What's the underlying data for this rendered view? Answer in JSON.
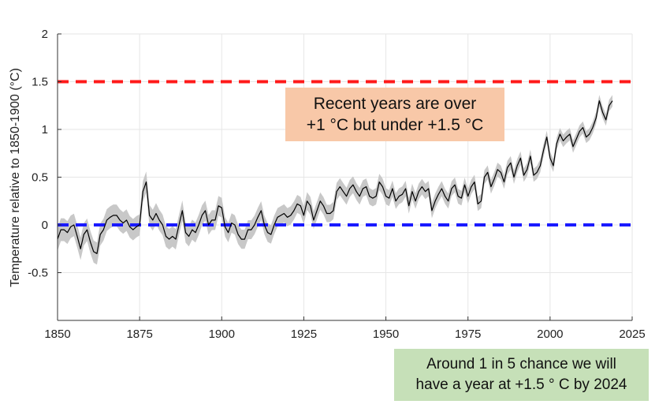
{
  "chart_data": {
    "type": "line",
    "title": "",
    "xlabel": "",
    "ylabel": "Temperature relative to 1850-1900 (°C)",
    "xlim": [
      1850,
      2025
    ],
    "ylim": [
      -1.0,
      2.0
    ],
    "xticks": [
      "1850",
      "1875",
      "1900",
      "1925",
      "1950",
      "1975",
      "2000",
      "2025"
    ],
    "yticks": [
      "-0.5",
      "0",
      "0.5",
      "1",
      "1.5",
      "2"
    ],
    "grid": true,
    "reference_lines": [
      {
        "y": 1.5,
        "color": "#ff1a1a",
        "style": "dashed"
      },
      {
        "y": 0.0,
        "color": "#1a1aff",
        "style": "dashed"
      }
    ],
    "uncertainty_band": {
      "color": "#c8c8c8",
      "half_width_start": 0.12,
      "half_width_end": 0.06
    },
    "series": [
      {
        "color": "#000000",
        "x_start": 1850,
        "values": [
          -0.15,
          -0.05,
          -0.05,
          -0.08,
          -0.02,
          0.0,
          -0.12,
          -0.25,
          -0.1,
          -0.05,
          -0.18,
          -0.28,
          -0.3,
          -0.1,
          -0.05,
          0.05,
          0.08,
          0.1,
          0.1,
          0.05,
          0.02,
          0.05,
          -0.02,
          -0.05,
          -0.02,
          0.0,
          0.35,
          0.45,
          0.1,
          0.05,
          0.12,
          0.05,
          0.0,
          -0.12,
          -0.15,
          -0.12,
          -0.15,
          0.0,
          0.15,
          -0.08,
          -0.12,
          -0.05,
          -0.08,
          0.0,
          0.1,
          0.15,
          0.0,
          0.05,
          0.05,
          0.2,
          0.18,
          -0.02,
          -0.08,
          0.02,
          0.0,
          -0.1,
          -0.15,
          -0.15,
          -0.05,
          -0.05,
          0.0,
          0.08,
          0.15,
          0.0,
          -0.08,
          -0.1,
          0.0,
          0.08,
          0.1,
          0.12,
          0.08,
          0.1,
          0.15,
          0.22,
          0.2,
          0.1,
          0.25,
          0.2,
          0.05,
          0.15,
          0.25,
          0.2,
          0.12,
          0.12,
          0.15,
          0.35,
          0.4,
          0.35,
          0.3,
          0.38,
          0.42,
          0.35,
          0.3,
          0.38,
          0.4,
          0.3,
          0.28,
          0.3,
          0.45,
          0.4,
          0.3,
          0.28,
          0.38,
          0.25,
          0.3,
          0.32,
          0.38,
          0.2,
          0.35,
          0.25,
          0.35,
          0.4,
          0.35,
          0.38,
          0.15,
          0.25,
          0.32,
          0.38,
          0.3,
          0.25,
          0.38,
          0.42,
          0.3,
          0.28,
          0.42,
          0.3,
          0.4,
          0.45,
          0.22,
          0.25,
          0.5,
          0.55,
          0.4,
          0.48,
          0.58,
          0.55,
          0.45,
          0.6,
          0.65,
          0.5,
          0.62,
          0.7,
          0.52,
          0.58,
          0.72,
          0.52,
          0.55,
          0.62,
          0.78,
          0.92,
          0.7,
          0.62,
          0.85,
          0.95,
          0.88,
          0.92,
          0.95,
          0.82,
          0.9,
          0.98,
          1.02,
          0.92,
          0.95,
          1.02,
          1.12,
          1.3,
          1.18,
          1.1,
          1.25,
          1.3
        ]
      }
    ],
    "annotations": {
      "upper": [
        "Recent years are over",
        "+1 °C but under +1.5 °C"
      ],
      "lower": [
        "Around 1 in 5 chance we will",
        "have a year at +1.5 ° C by 2024"
      ]
    }
  }
}
